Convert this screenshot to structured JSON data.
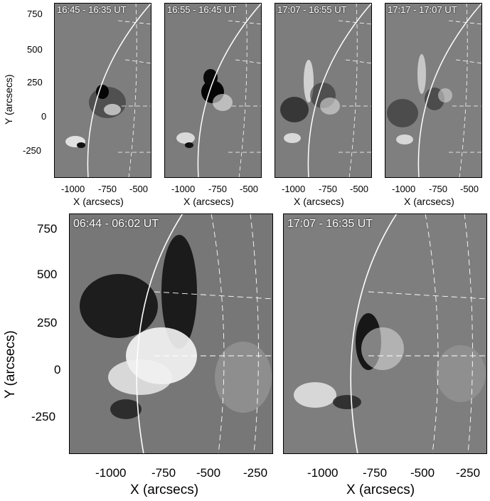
{
  "top_panels": [
    {
      "label": "16:45 - 16:35 UT"
    },
    {
      "label": "16:55 - 16:45 UT"
    },
    {
      "label": "17:07 - 16:55 UT"
    },
    {
      "label": "17:17 - 17:07 UT"
    }
  ],
  "bottom_panels": [
    {
      "label": "06:44 - 06:02 UT"
    },
    {
      "label": "17:07 - 16:35 UT"
    }
  ],
  "axes": {
    "x_title": "X (arcsecs)",
    "y_title": "Y (arcsecs)",
    "top_y_ticks": [
      "750",
      "500",
      "250",
      "0",
      "-250"
    ],
    "top_x_ticks": [
      "-1000",
      "-750",
      "-500"
    ],
    "bottom_y_ticks": [
      "750",
      "500",
      "250",
      "0",
      "-250"
    ],
    "bottom_x_ticks": [
      "-1000",
      "-750",
      "-500",
      "-250"
    ]
  },
  "colors": {
    "background": "#7d7d7d",
    "dark": "#101010",
    "bright": "#f5f5f5"
  }
}
